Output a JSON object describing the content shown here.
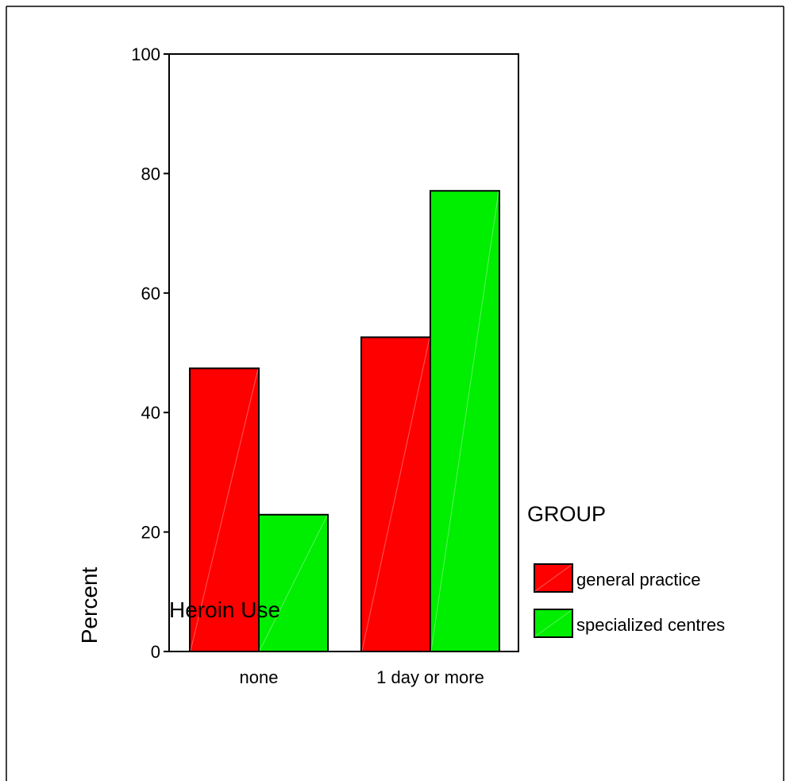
{
  "chart_data": {
    "type": "bar",
    "title": "",
    "xlabel": "Heroin Use",
    "ylabel": "Percent",
    "ylim": [
      0,
      100
    ],
    "yticks": [
      0,
      20,
      40,
      60,
      80,
      100
    ],
    "categories": [
      "none",
      "1 day or more"
    ],
    "series": [
      {
        "name": "general practice",
        "values": [
          47.4,
          52.6
        ],
        "color": "#ff0000"
      },
      {
        "name": "specialized centres",
        "values": [
          22.9,
          77.1
        ],
        "color": "#00ee00"
      }
    ],
    "legend": {
      "title": "GROUP",
      "placement": "right"
    },
    "grid": false
  }
}
